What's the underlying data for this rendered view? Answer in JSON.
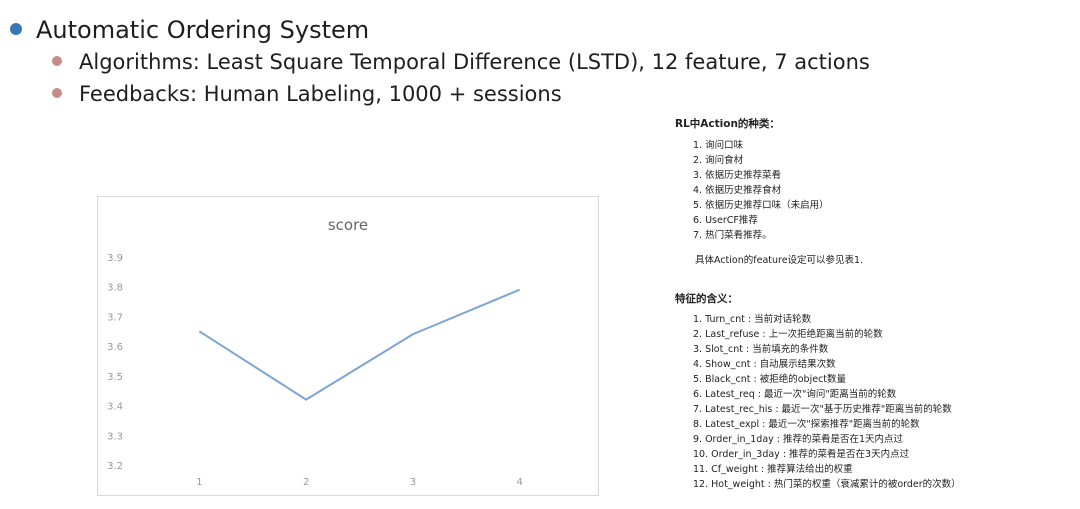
{
  "slide": {
    "title": "Automatic Ordering System",
    "bullets": [
      "Algorithms:  Least Square Temporal Difference  (LSTD), 12 feature, 7 actions",
      "Feedbacks:   Human Labeling, 1000 + sessions"
    ]
  },
  "actions_panel": {
    "title": "RL中Action的种类：",
    "items": [
      "1. 询问口味",
      "2. 询问食材",
      "3. 依据历史推荐菜肴",
      "4. 依据历史推荐食材",
      "5. 依据历史推荐口味（未启用）",
      "6. UserCF推荐",
      "7. 热门菜肴推荐。"
    ],
    "note": "具体Action的feature设定可以参见表1."
  },
  "features_panel": {
    "title": "特征的含义：",
    "items": [
      "1. Turn_cnt : 当前对话轮数",
      "2. Last_refuse : 上一次拒绝距离当前的轮数",
      "3. Slot_cnt : 当前填充的条件数",
      "4. Show_cnt : 自动展示结果次数",
      "5. Black_cnt : 被拒绝的object数量",
      "6. Latest_req : 最近一次\"询问\"距离当前的轮数",
      "7. Latest_rec_his : 最近一次\"基于历史推荐\"距离当前的轮数",
      "8. Latest_expl : 最近一次\"探索推荐\"距离当前的轮数",
      "9. Order_in_1day : 推荐的菜肴是否在1天内点过",
      "10. Order_in_3day : 推荐的菜肴是否在3天内点过",
      "11. Cf_weight : 推荐算法给出的权重",
      "12. Hot_weight : 热门菜的权重（衰减累计的被order的次数）"
    ]
  },
  "chart_data": {
    "type": "line",
    "title": "score",
    "categories": [
      "1",
      "2",
      "3",
      "4"
    ],
    "series": [
      {
        "values": [
          3.65,
          3.42,
          3.64,
          3.79
        ]
      }
    ],
    "ylim": [
      3.2,
      3.9
    ],
    "yticks": [
      "3.9",
      "3.8",
      "3.7",
      "3.6",
      "3.5",
      "3.4",
      "3.3",
      "3.2"
    ],
    "grid": false,
    "line_color": "#7ca5d6"
  }
}
